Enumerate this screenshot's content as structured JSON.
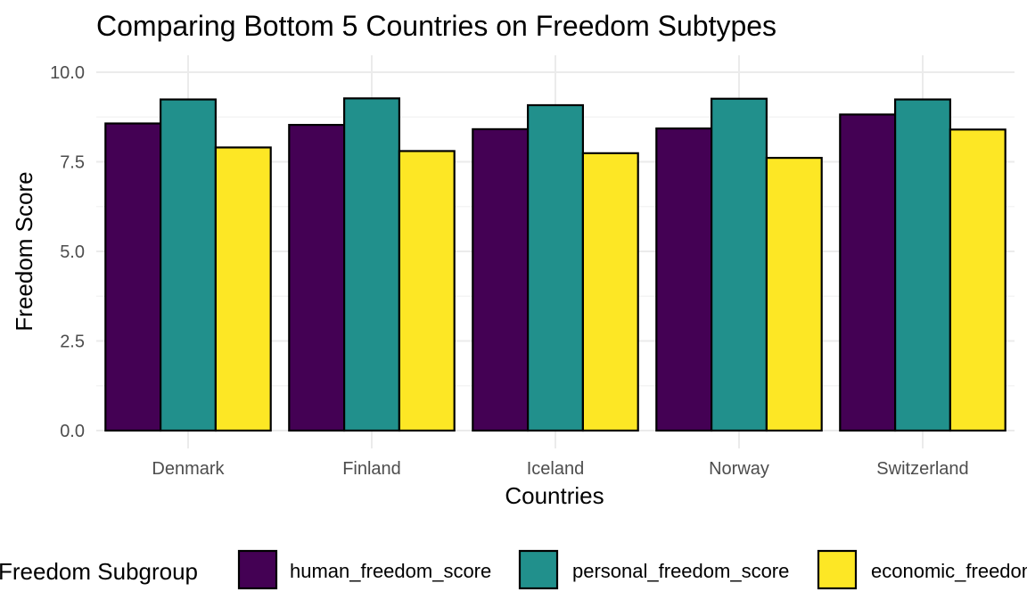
{
  "chart_data": {
    "type": "bar",
    "title": "Comparing Bottom 5 Countries on Freedom Subtypes",
    "xlabel": "Countries",
    "ylabel": "Freedom Score",
    "ylim": [
      0,
      10
    ],
    "yticks": [
      "0.0",
      "2.5",
      "5.0",
      "7.5",
      "10.0"
    ],
    "categories": [
      "Denmark",
      "Finland",
      "Iceland",
      "Norway",
      "Switzerland"
    ],
    "series": [
      {
        "name": "human_freedom_score",
        "color": "#440154",
        "values": [
          8.57,
          8.53,
          8.41,
          8.43,
          8.82
        ]
      },
      {
        "name": "personal_freedom_score",
        "color": "#21908C",
        "values": [
          9.24,
          9.27,
          9.08,
          9.26,
          9.24
        ]
      },
      {
        "name": "economic_freedom_score",
        "color": "#FDE725",
        "values": [
          7.9,
          7.8,
          7.74,
          7.61,
          8.4
        ]
      }
    ],
    "legend_title": "Freedom Subgroup",
    "legend_position": "bottom",
    "grid": true
  }
}
